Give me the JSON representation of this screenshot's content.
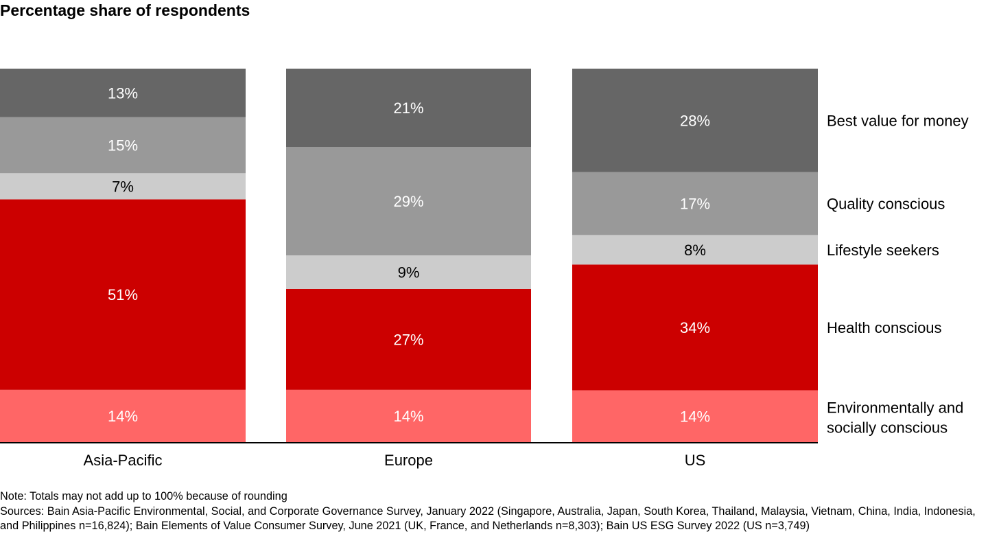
{
  "chart_data": {
    "type": "bar",
    "stacked": true,
    "title": "Percentage share of respondents",
    "categories": [
      "Asia-Pacific",
      "Europe",
      "US"
    ],
    "series": [
      {
        "name": "Environmentally and socially conscious",
        "color": "#ff6666",
        "values": [
          14,
          14,
          14
        ]
      },
      {
        "name": "Health conscious",
        "color": "#cc0000",
        "values": [
          51,
          27,
          34
        ]
      },
      {
        "name": "Lifestyle seekers",
        "color": "#cccccc",
        "values": [
          7,
          9,
          8
        ]
      },
      {
        "name": "Quality conscious",
        "color": "#999999",
        "values": [
          15,
          29,
          17
        ]
      },
      {
        "name": "Best value for money",
        "color": "#666666",
        "values": [
          13,
          21,
          28
        ]
      }
    ],
    "value_suffix": "%",
    "legend_position": "right",
    "grid": false
  },
  "notes": {
    "note": "Note: Totals may not add up to 100% because of rounding",
    "sources": "Sources: Bain Asia-Pacific Environmental, Social, and Corporate Governance Survey, January 2022 (Singapore, Australia, Japan, South Korea, Thailand, Malaysia, Vietnam, China, India, Indonesia, and Philippines n=16,824); Bain Elements of Value Consumer Survey, June 2021 (UK, France, and Netherlands n=8,303); Bain US ESG Survey 2022 (US n=3,749)"
  }
}
